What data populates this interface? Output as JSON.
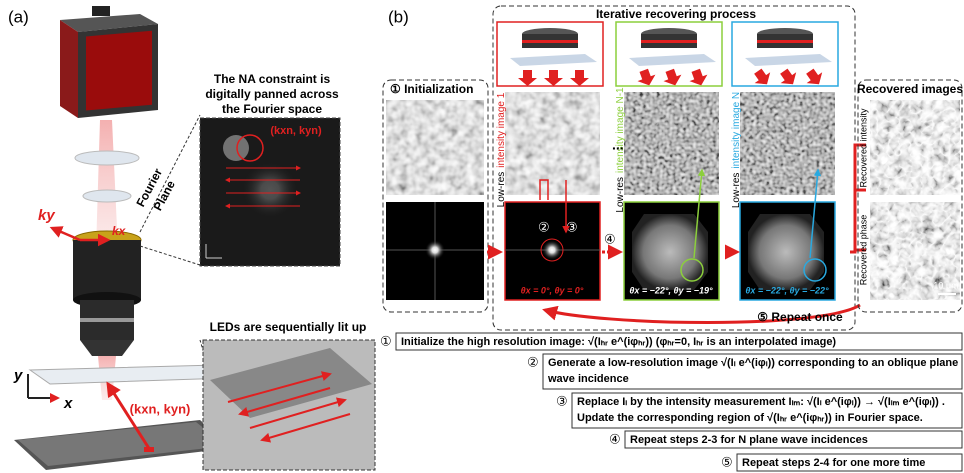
{
  "panel_a": {
    "label": "(a)",
    "na_caption": [
      "The NA constraint is",
      "digitally panned across",
      "the Fourier space"
    ],
    "fourier_plane": [
      "Fourier",
      "Plane"
    ],
    "ky": "ky",
    "kx": "kx",
    "inset_coord": "(kxn, kyn)",
    "led_caption": "LEDs are sequentially lit up",
    "axis_y": "y",
    "axis_x": "x",
    "led_coord": "(kxn, kyn)"
  },
  "panel_b": {
    "label": "(b)",
    "iterative_title": "Iterative recovering process",
    "initialization": "① Initialization",
    "ellipsis": "...",
    "columns": [
      {
        "prefix": "Low-res",
        "label": "intensity image 1",
        "angle": "θx = 0°, θy = 0°"
      },
      {
        "prefix": "Low-res",
        "label": "intensity image N-1",
        "angle": "θx = −22°, θy = −19°"
      },
      {
        "prefix": "Low-res",
        "label": "intensity image N",
        "angle": "θx = −22°, θy = −22°"
      }
    ],
    "circled_2": "②",
    "circled_3": "③",
    "circled_4": "④",
    "repeat": "⑤ Repeat once",
    "recovered_title": "Recovered images",
    "recovered_intensity": "Recovered intensity",
    "recovered_phase": "Recovered phase",
    "scale_bar": "10 μm"
  },
  "steps": [
    {
      "number": "①",
      "lines": [
        "Initialize the high resolution image: √(Iₕᵣ e^(iφₕᵣ))  (φₕᵣ=0, Iₕᵣ is an interpolated image)"
      ]
    },
    {
      "number": "②",
      "lines": [
        "Generate a low-resolution image √(Iₗ e^(iφₗ)) corresponding  to an oblique plane",
        "wave incidence"
      ]
    },
    {
      "number": "③",
      "lines": [
        "Replace Iₗ by the intensity measurement Iₗₘ: √(Iₗ e^(iφₗ)) → √(Iₗₘ e^(iφₗ)) .",
        "Update the corresponding region of √(Iₕᵣ e^(iφₕᵣ)) in Fourier space."
      ]
    },
    {
      "number": "④",
      "lines": [
        "Repeat steps 2-3 for  N plane wave incidences"
      ]
    },
    {
      "number": "⑤",
      "lines": [
        "Repeat steps 2-4 for one more time"
      ]
    }
  ]
}
